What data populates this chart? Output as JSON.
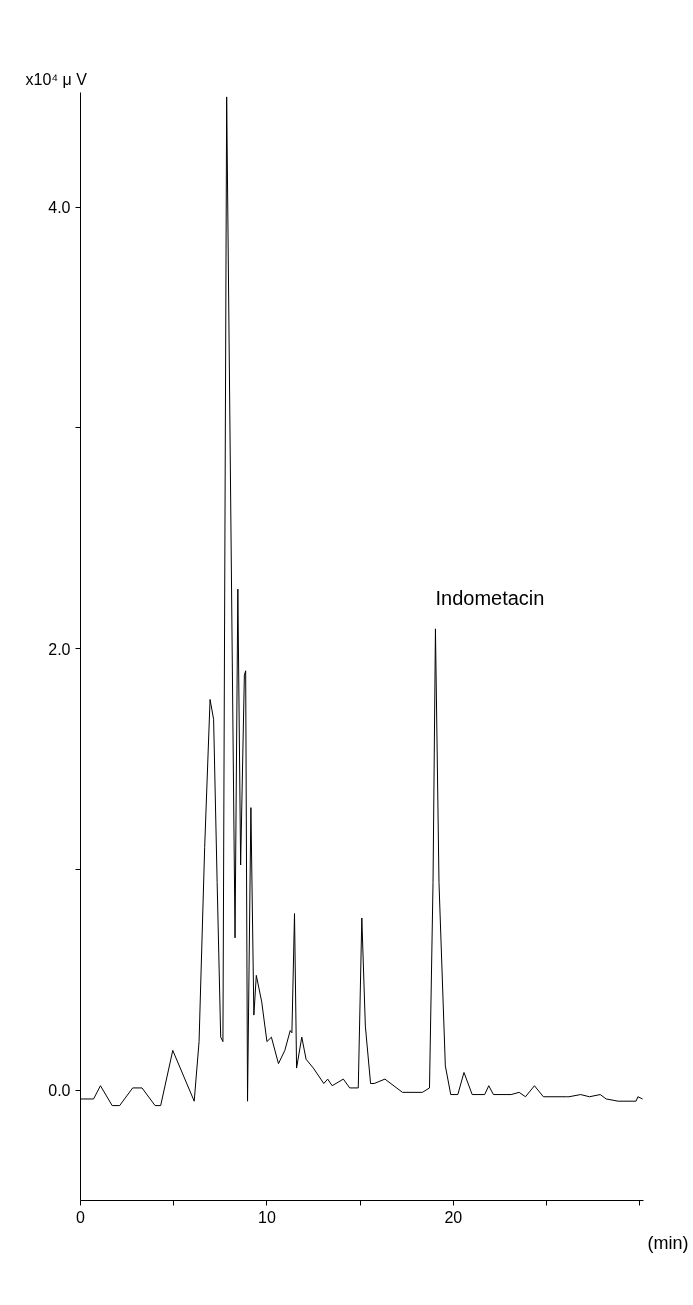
{
  "chart_data": {
    "type": "line",
    "xlabel": "(min)",
    "ylabel": "x10⁴ μ V",
    "annotations": [
      {
        "text": "Indometacin",
        "x": 19.04,
        "y": 2.09
      }
    ],
    "x": [
      0,
      0.7,
      1.07,
      1.7,
      2.1,
      2.8,
      3.3,
      4.0,
      4.3,
      4.95,
      6.1,
      6.36,
      6.66,
      6.95,
      7.14,
      7.33,
      7.52,
      7.64,
      7.84,
      8.29,
      8.44,
      8.59,
      8.79,
      8.86,
      8.96,
      9.14,
      9.3,
      9.43,
      9.72,
      10.0,
      10.24,
      10.62,
      10.96,
      11.25,
      11.34,
      11.48,
      11.59,
      11.87,
      12.1,
      12.49,
      13.05,
      13.26,
      13.5,
      14.1,
      14.44,
      14.9,
      15.09,
      15.28,
      15.56,
      15.75,
      16.33,
      17.27,
      18.34,
      18.72,
      18.91,
      19.04,
      19.23,
      19.57,
      19.86,
      20.24,
      20.57,
      21.01,
      21.68,
      21.9,
      22.15,
      23.1,
      23.53,
      23.87,
      24.35,
      24.83,
      26.07,
      26.2,
      26.83,
      27.3,
      27.88,
      28.2,
      28.84,
      29.8,
      29.9,
      30.15
    ],
    "series": [
      {
        "color": "#000000",
        "values": [
          -0.04,
          -0.04,
          0.02,
          -0.07,
          -0.07,
          0.01,
          0.01,
          -0.07,
          -0.07,
          0.18,
          -0.05,
          0.22,
          1.1,
          1.77,
          1.68,
          0.94,
          0.24,
          0.22,
          4.5,
          0.69,
          2.27,
          1.02,
          1.88,
          1.9,
          -0.05,
          1.28,
          0.34,
          0.52,
          0.4,
          0.22,
          0.24,
          0.12,
          0.18,
          0.27,
          0.26,
          0.8,
          0.1,
          0.24,
          0.14,
          0.1,
          0.03,
          0.05,
          0.02,
          0.05,
          0.01,
          0.01,
          0.78,
          0.29,
          0.03,
          0.03,
          0.05,
          -0.01,
          -0.01,
          0.01,
          0.94,
          2.09,
          0.94,
          0.11,
          -0.02,
          -0.02,
          0.08,
          -0.02,
          -0.02,
          0.02,
          -0.02,
          -0.02,
          -0.01,
          -0.03,
          0.02,
          -0.03,
          -0.03,
          -0.03,
          -0.02,
          -0.03,
          -0.02,
          -0.04,
          -0.05,
          -0.05,
          -0.03,
          -0.04
        ]
      }
    ],
    "xlim": [
      0,
      30.2
    ],
    "ylim": [
      -0.5,
      4.52
    ],
    "xticks": [
      0,
      {
        "value": 5,
        "label": null
      },
      10,
      {
        "value": 15,
        "label": null
      },
      20,
      {
        "value": 25,
        "label": null
      },
      {
        "value": 30,
        "label": null
      }
    ],
    "yticks": [
      {
        "value": 0,
        "label": "0.0"
      },
      {
        "value": 1,
        "label": null
      },
      {
        "value": 2,
        "label": "2.0"
      },
      {
        "value": 3,
        "label": null
      },
      {
        "value": 4,
        "label": "4.0"
      }
    ]
  }
}
